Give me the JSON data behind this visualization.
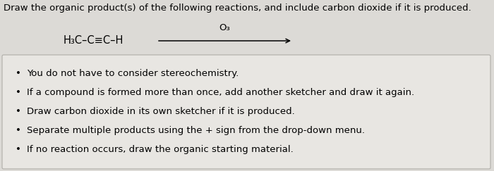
{
  "title": "Draw the organic product(s) of the following reactions, and include carbon dioxide if it is produced.",
  "reactant": "H₃C–C≡C–H",
  "reagent": "O₃",
  "background_color": "#dcdad6",
  "box_background": "#e8e6e2",
  "box_border": "#b0aea8",
  "bullet_points": [
    "You do not have to consider stereochemistry.",
    "If a compound is formed more than once, add another sketcher and draw it again.",
    "Draw carbon dioxide in its own sketcher if it is produced.",
    "Separate multiple products using the + sign from the drop-down menu.",
    "If no reaction occurs, draw the organic starting material."
  ],
  "title_fontsize": 9.5,
  "reactant_fontsize": 10.5,
  "bullet_fontsize": 9.5,
  "fig_width": 7.0,
  "fig_height": 2.43
}
